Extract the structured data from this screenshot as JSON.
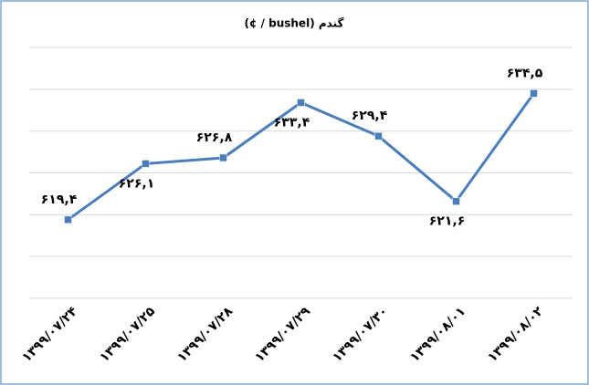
{
  "chart_data": {
    "type": "line",
    "title": "گندم (bushel / ¢)",
    "categories": [
      "۱۳۹۹/۰۷/۲۴",
      "۱۳۹۹/۰۷/۲۵",
      "۱۳۹۹/۰۷/۲۸",
      "۱۳۹۹/۰۷/۲۹",
      "۱۳۹۹/۰۷/۳۰",
      "۱۳۹۹/۰۸/۰۱",
      "۱۳۹۹/۰۸/۰۲"
    ],
    "values": [
      619.4,
      626.1,
      626.8,
      633.4,
      629.4,
      621.6,
      634.5
    ],
    "value_labels": [
      "۶۱۹,۴",
      "۶۲۶,۱",
      "۶۲۶,۸",
      "۶۳۳,۴",
      "۶۲۹,۴",
      "۶۲۱,۶",
      "۶۳۴,۵"
    ],
    "color": "#4a7ebb",
    "ylim": [
      610,
      640
    ],
    "yticks": [
      610,
      615,
      620,
      625,
      630,
      635,
      640
    ],
    "grid": true
  }
}
